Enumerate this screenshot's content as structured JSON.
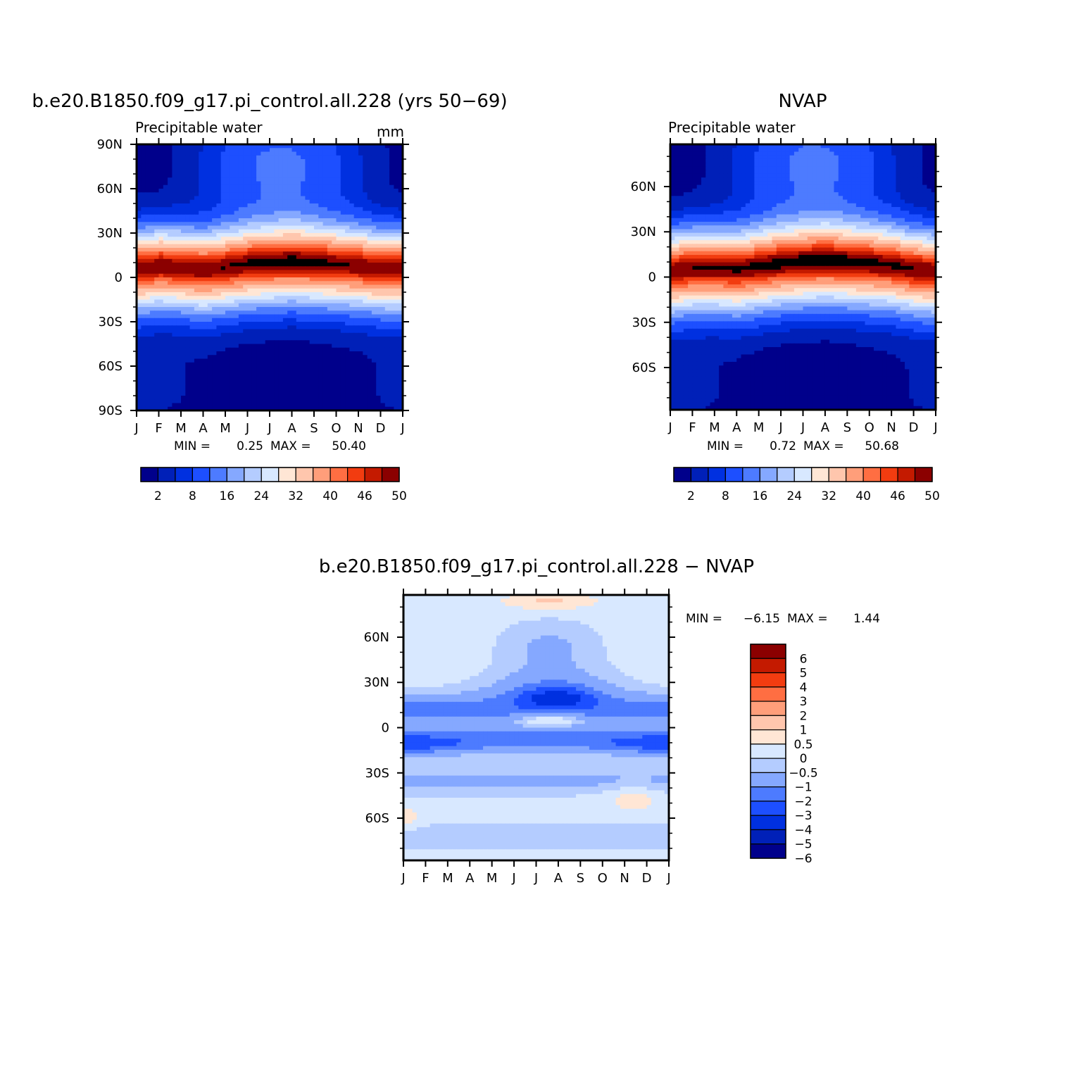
{
  "chart_data": [
    {
      "type": "heatmap",
      "title": "b.e20.B1850.f09_g17.pi_control.all.228 (yrs 50−69)",
      "subtitle": "Precipitable water",
      "units": "mm",
      "x_ticks": [
        "J",
        "F",
        "M",
        "A",
        "M",
        "J",
        "J",
        "A",
        "S",
        "O",
        "N",
        "D",
        "J"
      ],
      "y_range": [
        -90,
        90
      ],
      "y_ticks": [
        {
          "v": 90,
          "label": "90N"
        },
        {
          "v": 60,
          "label": "60N"
        },
        {
          "v": 30,
          "label": "30N"
        },
        {
          "v": 0,
          "label": "0"
        },
        {
          "v": -30,
          "label": "30S"
        },
        {
          "v": -60,
          "label": "60S"
        },
        {
          "v": -90,
          "label": "90S"
        }
      ],
      "min_label": "MIN =",
      "min_value": "0.25",
      "max_label": "MAX =",
      "max_value": "50.40",
      "peak_latitude": [
        6,
        8,
        7,
        5,
        7,
        9,
        10,
        11,
        10,
        9,
        8,
        6,
        6
      ],
      "levels": [
        2,
        5,
        8,
        12,
        16,
        20,
        24,
        28,
        32,
        36,
        40,
        43,
        46,
        48,
        50
      ],
      "colorbar_labels": [
        "2",
        "8",
        "16",
        "24",
        "32",
        "40",
        "46",
        "50"
      ],
      "colors": [
        "#00008b",
        "#0020b8",
        "#0030e0",
        "#1d4fff",
        "#4d7bff",
        "#85a8ff",
        "#b4ccff",
        "#d8e8ff",
        "#ffe6d5",
        "#ffc6ad",
        "#ff9e7a",
        "#ff6e42",
        "#f23c10",
        "#c41a00",
        "#8b0000"
      ]
    },
    {
      "type": "heatmap",
      "title": "NVAP",
      "subtitle": "Precipitable water",
      "x_ticks": [
        "J",
        "F",
        "M",
        "A",
        "M",
        "J",
        "J",
        "A",
        "S",
        "O",
        "N",
        "D",
        "J"
      ],
      "y_range": [
        -88,
        88
      ],
      "y_ticks": [
        {
          "v": 60,
          "label": "60N"
        },
        {
          "v": 30,
          "label": "30N"
        },
        {
          "v": 0,
          "label": "0"
        },
        {
          "v": -30,
          "label": "30S"
        },
        {
          "v": -60,
          "label": "60S"
        }
      ],
      "min_label": "MIN =",
      "min_value": "0.72",
      "max_label": "MAX =",
      "max_value": "50.68",
      "peak_latitude": [
        4,
        6,
        6,
        5,
        7,
        9,
        10,
        11,
        10,
        9,
        8,
        5,
        4
      ],
      "levels": [
        2,
        5,
        8,
        12,
        16,
        20,
        24,
        28,
        32,
        36,
        40,
        43,
        46,
        48,
        50
      ],
      "colorbar_labels": [
        "2",
        "8",
        "16",
        "24",
        "32",
        "40",
        "46",
        "50"
      ],
      "colors": [
        "#00008b",
        "#0020b8",
        "#0030e0",
        "#1d4fff",
        "#4d7bff",
        "#85a8ff",
        "#b4ccff",
        "#d8e8ff",
        "#ffe6d5",
        "#ffc6ad",
        "#ff9e7a",
        "#ff6e42",
        "#f23c10",
        "#c41a00",
        "#8b0000"
      ]
    },
    {
      "type": "heatmap",
      "title": "b.e20.B1850.f09_g17.pi_control.all.228 − NVAP",
      "x_ticks": [
        "J",
        "F",
        "M",
        "A",
        "M",
        "J",
        "J",
        "A",
        "S",
        "O",
        "N",
        "D",
        "J"
      ],
      "y_range": [
        -88,
        88
      ],
      "y_ticks": [
        {
          "v": 60,
          "label": "60N"
        },
        {
          "v": 30,
          "label": "30N"
        },
        {
          "v": 0,
          "label": "0"
        },
        {
          "v": -30,
          "label": "30S"
        },
        {
          "v": -60,
          "label": "60S"
        }
      ],
      "min_label": "MIN =",
      "min_value": "−6.15",
      "max_label": "MAX =",
      "max_value": "1.44",
      "levels": [
        -6,
        -5,
        -4,
        -3,
        -2,
        -1,
        -0.5,
        0,
        0.5,
        1,
        2,
        3,
        4,
        5,
        6
      ],
      "colorbar_labels": [
        "6",
        "5",
        "4",
        "3",
        "2",
        "1",
        "0.5",
        "0",
        "−0.5",
        "−1",
        "−2",
        "−3",
        "−4",
        "−5",
        "−6"
      ],
      "colors": [
        "#00008b",
        "#0020b8",
        "#0030e0",
        "#1d4fff",
        "#4d7bff",
        "#85a8ff",
        "#b4ccff",
        "#d8e8ff",
        "#ffe6d5",
        "#ffc6ad",
        "#ff9e7a",
        "#ff6e42",
        "#f23c10",
        "#c41a00",
        "#8b0000"
      ]
    }
  ]
}
